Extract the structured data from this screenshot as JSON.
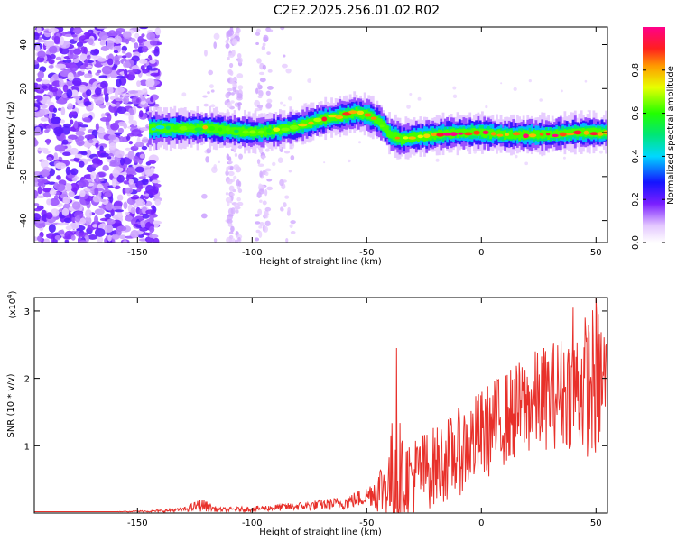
{
  "title": "C2E2.2025.256.01.02.R02",
  "colors": {
    "snr_line": "#e8302a",
    "axis": "#000000",
    "plot_bg": "#ffffff"
  },
  "chart_data": [
    {
      "type": "heatmap",
      "name": "spectrogram",
      "xlabel": "Height of straight line (km)",
      "ylabel": "Frequency (Hz)",
      "xlim": [
        -195,
        55
      ],
      "ylim": [
        -50,
        48
      ],
      "xticks": [
        -150,
        -100,
        -50,
        0,
        50
      ],
      "yticks": [
        -40,
        -20,
        0,
        20,
        40
      ],
      "tick_labels_x": [
        "-150",
        "-100",
        "-50",
        "0",
        "50"
      ],
      "tick_labels_y": [
        "-40",
        "-20",
        "0",
        "20",
        "40"
      ],
      "colorbar": {
        "label": "Normalized spectral amplitude",
        "range": [
          0,
          1
        ],
        "ticks": [
          0.0,
          0.2,
          0.4,
          0.6,
          0.8
        ],
        "tick_labels": [
          "0.0",
          "0.2",
          "0.4",
          "0.6",
          "0.8"
        ],
        "colormap": "rainbow (white-violet-blue-cyan-green-yellow-orange-red-magenta)"
      },
      "ridge": {
        "description": "peak frequency track of the strong signal",
        "x": [
          -145,
          -130,
          -120,
          -110,
          -100,
          -90,
          -80,
          -70,
          -60,
          -55,
          -50,
          -45,
          -40,
          -35,
          -30,
          -20,
          -10,
          0,
          10,
          20,
          30,
          40,
          50,
          55
        ],
        "y": [
          2,
          2,
          2,
          1,
          0,
          1,
          3,
          6,
          8,
          9,
          8,
          5,
          -1,
          -3,
          -2,
          -1,
          0,
          0,
          -1,
          -1,
          -1,
          0,
          0,
          0
        ],
        "amplitude": [
          0.45,
          0.6,
          0.7,
          0.65,
          0.6,
          0.7,
          0.75,
          0.8,
          0.85,
          0.9,
          0.85,
          0.8,
          0.7,
          0.75,
          0.8,
          0.85,
          0.9,
          0.95,
          0.9,
          0.9,
          0.9,
          0.95,
          0.95,
          0.9
        ]
      },
      "noise_region": {
        "x_range": [
          -195,
          -141
        ],
        "amplitude": "0.1-0.25"
      }
    },
    {
      "type": "line",
      "name": "snr",
      "xlabel": "Height of straight line (km)",
      "ylabel": "SNR (10 * v/v)",
      "y_multiplier_label": "(x10",
      "y_multiplier_exponent": "4",
      "y_multiplier_close": ")",
      "xlim": [
        -195,
        55
      ],
      "ylim": [
        0,
        3.2
      ],
      "xticks": [
        -150,
        -100,
        -50,
        0,
        50
      ],
      "yticks": [
        1,
        2,
        3
      ],
      "tick_labels_x": [
        "-150",
        "-100",
        "-50",
        "0",
        "50"
      ],
      "tick_labels_y": [
        "1",
        "2",
        "3"
      ],
      "envelope": {
        "x": [
          -195,
          -160,
          -140,
          -130,
          -122,
          -115,
          -100,
          -80,
          -70,
          -60,
          -55,
          -50,
          -48,
          -45,
          -40,
          -38,
          -37,
          -35,
          -30,
          -20,
          -10,
          0,
          10,
          20,
          30,
          40,
          50,
          55
        ],
        "baseline": [
          0.02,
          0.02,
          0.03,
          0.05,
          0.12,
          0.05,
          0.06,
          0.1,
          0.12,
          0.15,
          0.2,
          0.25,
          0.3,
          0.35,
          0.45,
          0.55,
          0.6,
          0.5,
          0.55,
          0.7,
          0.9,
          1.15,
          1.4,
          1.6,
          1.75,
          1.85,
          1.95,
          2.0
        ],
        "spread": [
          0.0,
          0.0,
          0.02,
          0.03,
          0.1,
          0.03,
          0.04,
          0.06,
          0.08,
          0.1,
          0.12,
          0.15,
          0.2,
          0.35,
          0.6,
          1.2,
          1.9,
          0.6,
          0.6,
          0.6,
          0.65,
          0.7,
          0.7,
          0.75,
          0.8,
          0.9,
          1.2,
          0.8
        ]
      },
      "peaks": [
        {
          "x": -37,
          "y": 2.45
        },
        {
          "x": 40,
          "y": 3.05
        },
        {
          "x": 50,
          "y": 3.2
        }
      ]
    }
  ]
}
